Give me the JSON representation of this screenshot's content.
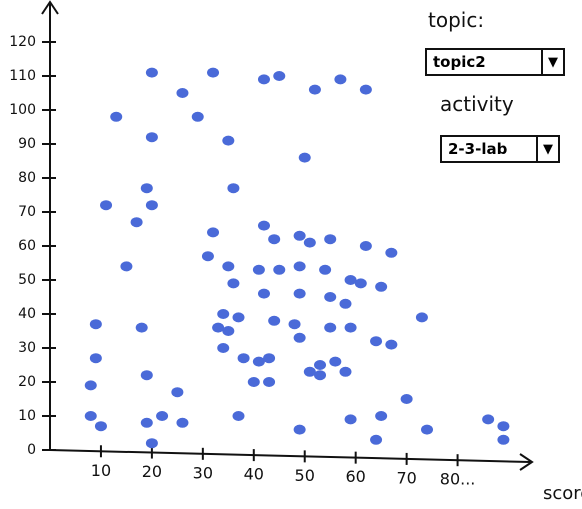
{
  "controls": {
    "topic_label": "topic:",
    "topic_value": "topic2",
    "activity_label": "activity",
    "activity_value": "2-3-lab"
  },
  "chart_data": {
    "type": "scatter",
    "x_label": "scores",
    "color": "#4a6ad8",
    "x": [
      20,
      26,
      32,
      42,
      45,
      52,
      57,
      62,
      13,
      29,
      20,
      35,
      50,
      11,
      19,
      20,
      17,
      36,
      32,
      31,
      42,
      44,
      49,
      51,
      55,
      62,
      67,
      15,
      35,
      36,
      41,
      45,
      49,
      54,
      42,
      49,
      55,
      59,
      61,
      65,
      58,
      34,
      37,
      44,
      48,
      55,
      59,
      73,
      9,
      18,
      33,
      35,
      34,
      49,
      64,
      67,
      38,
      41,
      43,
      53,
      56,
      51,
      53,
      58,
      40,
      43,
      9,
      19,
      8,
      25,
      70,
      8,
      22,
      37,
      59,
      65,
      10,
      19,
      26,
      49,
      74,
      86,
      89,
      64,
      89,
      20
    ],
    "values": [
      111,
      105,
      111,
      109,
      110,
      106,
      109,
      106,
      98,
      98,
      92,
      91,
      86,
      72,
      77,
      72,
      67,
      77,
      64,
      57,
      66,
      62,
      63,
      61,
      62,
      60,
      58,
      54,
      54,
      49,
      53,
      53,
      54,
      53,
      46,
      46,
      45,
      50,
      49,
      48,
      43,
      40,
      39,
      38,
      37,
      36,
      36,
      39,
      37,
      36,
      36,
      35,
      30,
      33,
      32,
      31,
      27,
      26,
      27,
      25,
      26,
      23,
      22,
      23,
      20,
      20,
      27,
      22,
      19,
      17,
      15,
      10,
      10,
      10,
      9,
      10,
      7,
      8,
      8,
      6,
      6,
      9,
      7,
      3,
      3,
      2
    ],
    "xlim": [
      0,
      95
    ],
    "ylim": [
      0,
      130
    ],
    "xticks": [
      10,
      20,
      30,
      40,
      50,
      60,
      70,
      {
        "value": 80,
        "label": "80..."
      }
    ],
    "yticks": [
      0,
      10,
      20,
      30,
      40,
      50,
      60,
      70,
      80,
      90,
      100,
      110,
      120
    ]
  }
}
